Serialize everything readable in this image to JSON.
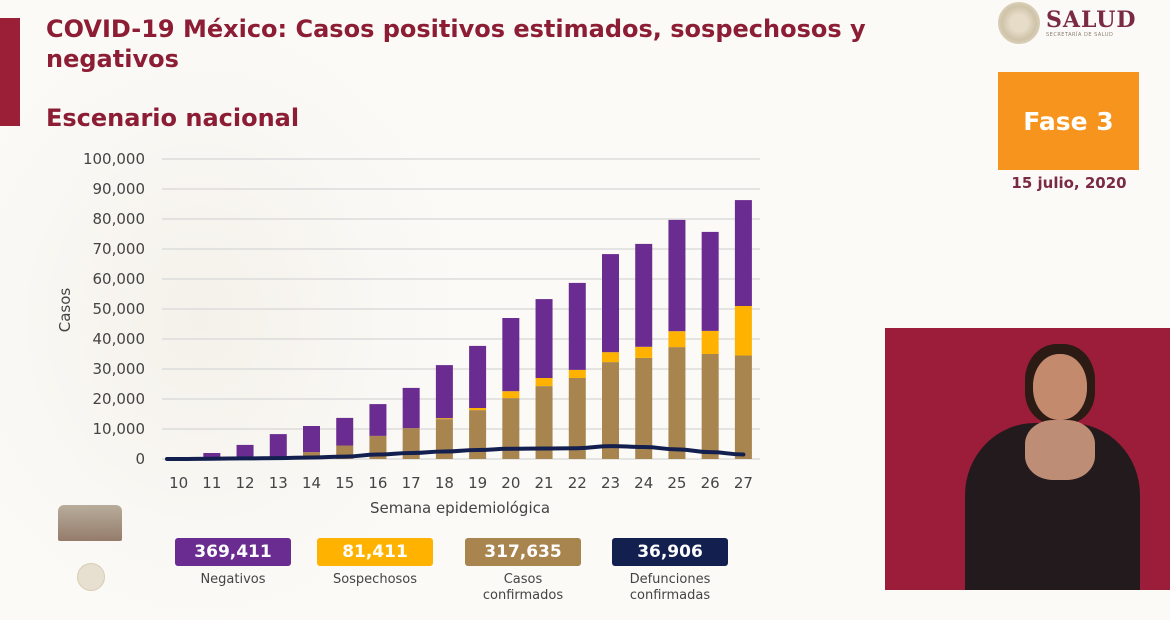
{
  "header": {
    "title": "COVID-19 México: Casos positivos estimados, sospechosos y negativos",
    "subtitle": "Escenario nacional",
    "logo_main": "SALUD",
    "logo_sub": "SECRETARÍA DE SALUD",
    "phase": "Fase 3",
    "date": "15 julio, 2020"
  },
  "colors": {
    "title": "#8c1d34",
    "negativos": "#6a2c91",
    "sospechosos": "#ffb300",
    "confirmados": "#a8844f",
    "defunciones": "#13204f",
    "fase": "#f7941d"
  },
  "totals": [
    {
      "value": "369,411",
      "label": "Negativos",
      "label2": "",
      "color": "#6a2c91"
    },
    {
      "value": "81,411",
      "label": "Sospechosos",
      "label2": "",
      "color": "#ffb300"
    },
    {
      "value": "317,635",
      "label": "Casos",
      "label2": "confirmados",
      "color": "#a8844f"
    },
    {
      "value": "36,906",
      "label": "Defunciones",
      "label2": "confirmadas",
      "color": "#13204f"
    }
  ],
  "chart_data": {
    "type": "bar",
    "stacked": true,
    "title": "",
    "xlabel": "Semana epidemiológica",
    "ylabel": "Casos",
    "ylim": [
      0,
      100000
    ],
    "yticks": [
      0,
      10000,
      20000,
      30000,
      40000,
      50000,
      60000,
      70000,
      80000,
      90000,
      100000
    ],
    "ytick_labels": [
      "0",
      "10,000",
      "20,000",
      "30,000",
      "40,000",
      "50,000",
      "60,000",
      "70,000",
      "80,000",
      "90,000",
      "100,000"
    ],
    "grid": true,
    "categories": [
      "10",
      "11",
      "12",
      "13",
      "14",
      "15",
      "16",
      "17",
      "18",
      "19",
      "20",
      "21",
      "22",
      "23",
      "24",
      "25",
      "26",
      "27"
    ],
    "series": [
      {
        "name": "Casos confirmados",
        "kind": "bar",
        "color": "#a8844f",
        "values": [
          0,
          0,
          300,
          600,
          2300,
          4500,
          7700,
          10300,
          13300,
          16300,
          20300,
          24300,
          27000,
          32300,
          33700,
          37300,
          35000,
          34500
        ]
      },
      {
        "name": "Sospechosos",
        "kind": "bar",
        "color": "#ffb300",
        "values": [
          0,
          0,
          0,
          0,
          0,
          0,
          0,
          0,
          300,
          700,
          2300,
          2700,
          2700,
          3300,
          3700,
          5300,
          7700,
          16500
        ]
      },
      {
        "name": "Negativos",
        "kind": "bar",
        "color": "#6a2c91",
        "values": [
          300,
          2000,
          4400,
          7700,
          8700,
          9200,
          10600,
          13400,
          17700,
          20700,
          24400,
          26300,
          29000,
          32700,
          34300,
          37100,
          33000,
          35300
        ]
      },
      {
        "name": "Defunciones confirmadas",
        "kind": "line",
        "color": "#13204f",
        "values": [
          0,
          100,
          200,
          300,
          500,
          800,
          1500,
          2000,
          2500,
          3000,
          3400,
          3500,
          3600,
          4300,
          4000,
          3200,
          2300,
          1500
        ]
      }
    ]
  }
}
